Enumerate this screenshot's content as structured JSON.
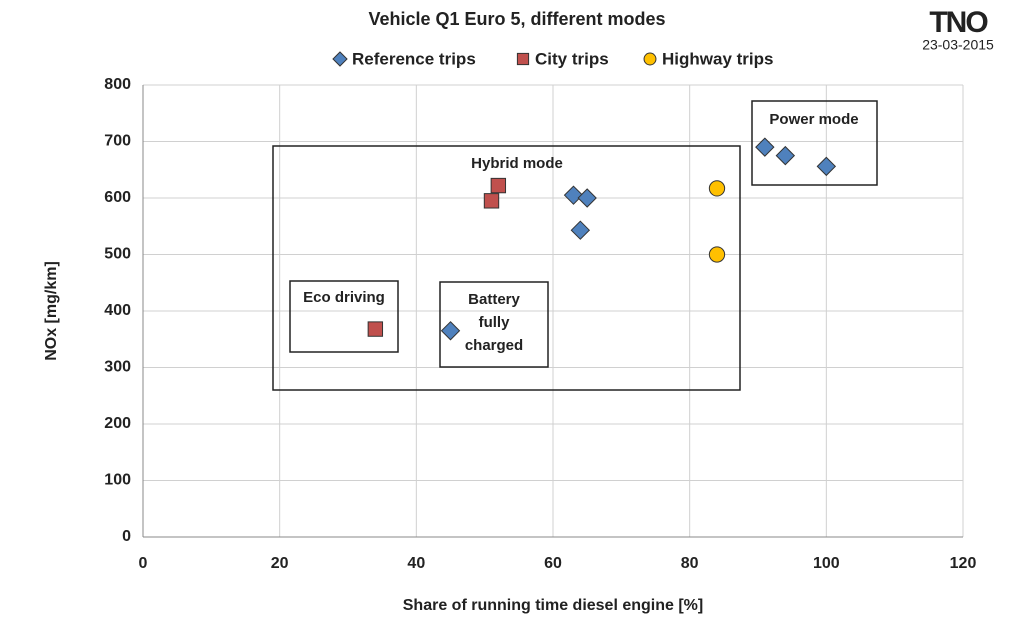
{
  "chart_data": {
    "type": "scatter",
    "title": "Vehicle Q1 Euro 5, different modes",
    "logo": "TNO",
    "date": "23-03-2015",
    "x_label": "Share of running time diesel engine [%]",
    "y_label": "NOx  [mg/km]",
    "xlim": [
      0,
      120
    ],
    "xticks": [
      0,
      20,
      40,
      60,
      80,
      100,
      120
    ],
    "ylim": [
      0,
      800
    ],
    "yticks": [
      0,
      100,
      200,
      300,
      400,
      500,
      600,
      700,
      800
    ],
    "grid": true,
    "legend": "top",
    "series": [
      {
        "name": "Reference trips",
        "color": "#4f81bd",
        "marker": "diamond",
        "x": [
          91,
          94,
          100,
          63,
          65,
          64,
          45
        ],
        "values": [
          690,
          675,
          656,
          605,
          600,
          543,
          365
        ]
      },
      {
        "name": "City trips",
        "color": "#c0504d",
        "marker": "square",
        "x": [
          52,
          51,
          34
        ],
        "values": [
          622,
          595,
          368
        ]
      },
      {
        "name": "Highway trips",
        "color": "#ffc000",
        "marker": "circle",
        "x": [
          84,
          84
        ],
        "values": [
          617,
          500
        ]
      }
    ],
    "annotations": [
      {
        "lines": [
          "Hybrid mode"
        ]
      },
      {
        "lines": [
          "Power mode"
        ]
      },
      {
        "lines": [
          "Eco driving"
        ]
      },
      {
        "lines": [
          "Battery",
          "fully",
          "charged"
        ]
      }
    ]
  }
}
